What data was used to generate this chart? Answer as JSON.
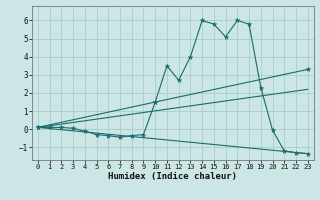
{
  "title": "",
  "xlabel": "Humidex (Indice chaleur)",
  "xlim": [
    -0.5,
    23.5
  ],
  "ylim": [
    -1.7,
    6.8
  ],
  "xticks": [
    0,
    1,
    2,
    3,
    4,
    5,
    6,
    7,
    8,
    9,
    10,
    11,
    12,
    13,
    14,
    15,
    16,
    17,
    18,
    19,
    20,
    21,
    22,
    23
  ],
  "yticks": [
    -1,
    0,
    1,
    2,
    3,
    4,
    5,
    6
  ],
  "bg_color": "#cce5e5",
  "grid_color": "#aacccc",
  "line_color": "#1a6b6b",
  "series": {
    "line1_x": [
      0,
      1,
      2,
      3,
      4,
      5,
      6,
      7,
      8,
      9,
      10,
      11,
      12,
      13,
      14,
      15,
      16,
      17,
      18,
      19,
      20,
      21,
      22,
      23
    ],
    "line1_y": [
      0.1,
      0.1,
      0.1,
      0.05,
      -0.1,
      -0.3,
      -0.35,
      -0.45,
      -0.35,
      -0.3,
      1.5,
      3.5,
      2.7,
      4.0,
      6.0,
      5.8,
      5.1,
      6.0,
      5.8,
      2.3,
      -0.05,
      -1.2,
      -1.3,
      -1.35
    ],
    "line2_x": [
      0,
      10,
      23
    ],
    "line2_y": [
      0.1,
      1.5,
      3.3
    ],
    "line3_x": [
      0,
      23
    ],
    "line3_y": [
      0.1,
      2.2
    ],
    "line4_x": [
      0,
      23
    ],
    "line4_y": [
      0.1,
      -1.35
    ]
  }
}
